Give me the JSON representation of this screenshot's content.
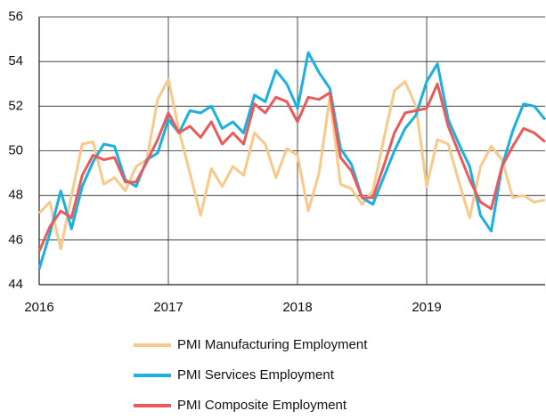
{
  "chart_data": {
    "type": "line",
    "x": [
      2016,
      2016.083,
      2016.167,
      2016.25,
      2016.333,
      2016.417,
      2016.5,
      2016.583,
      2016.667,
      2016.75,
      2016.833,
      2016.917,
      2017,
      2017.083,
      2017.167,
      2017.25,
      2017.333,
      2017.417,
      2017.5,
      2017.583,
      2017.667,
      2017.75,
      2017.833,
      2017.917,
      2018,
      2018.083,
      2018.167,
      2018.25,
      2018.333,
      2018.417,
      2018.5,
      2018.583,
      2018.667,
      2018.75,
      2018.833,
      2018.917,
      2019,
      2019.083,
      2019.167,
      2019.25,
      2019.333,
      2019.417,
      2019.5,
      2019.583,
      2019.667,
      2019.75,
      2019.833,
      2019.917
    ],
    "series": [
      {
        "name": "PMI Manufacturing Employment",
        "color": "#f9c98a",
        "values": [
          47.2,
          47.7,
          45.6,
          48.0,
          50.3,
          50.4,
          48.5,
          48.8,
          48.2,
          49.3,
          49.6,
          52.3,
          53.2,
          50.9,
          49.0,
          47.1,
          49.2,
          48.4,
          49.3,
          48.9,
          50.8,
          50.3,
          48.8,
          50.1,
          49.8,
          47.3,
          49.0,
          52.4,
          48.5,
          48.3,
          47.6,
          48.2,
          50.5,
          52.7,
          53.1,
          52.0,
          48.4,
          50.5,
          50.3,
          48.6,
          47.0,
          49.3,
          50.2,
          49.6,
          47.9,
          48.0,
          47.7,
          47.8
        ]
      },
      {
        "name": "PMI Services Employment",
        "color": "#1ab1e0",
        "values": [
          44.7,
          46.3,
          48.2,
          46.5,
          48.4,
          49.5,
          50.3,
          50.2,
          48.7,
          48.4,
          49.6,
          49.9,
          51.4,
          50.8,
          51.8,
          51.7,
          52.0,
          51.0,
          51.3,
          50.8,
          52.5,
          52.2,
          53.6,
          53.0,
          51.9,
          54.4,
          53.5,
          52.8,
          50.1,
          49.4,
          47.9,
          47.6,
          48.8,
          50.0,
          51.0,
          51.6,
          53.1,
          53.9,
          51.4,
          50.3,
          49.3,
          47.1,
          46.4,
          49.3,
          50.9,
          52.1,
          52.0,
          51.4
        ]
      },
      {
        "name": "PMI Composite Employment",
        "color": "#eb5a5a",
        "values": [
          45.5,
          46.6,
          47.3,
          47.0,
          48.9,
          49.8,
          49.6,
          49.7,
          48.6,
          48.6,
          49.5,
          50.5,
          51.7,
          50.8,
          51.1,
          50.6,
          51.3,
          50.3,
          50.8,
          50.3,
          52.1,
          51.7,
          52.4,
          52.2,
          51.3,
          52.4,
          52.3,
          52.6,
          49.7,
          49.1,
          47.9,
          47.9,
          49.3,
          50.8,
          51.7,
          51.8,
          51.9,
          53.0,
          51.1,
          49.9,
          48.7,
          47.7,
          47.4,
          49.3,
          50.2,
          51.0,
          50.8,
          50.4
        ]
      }
    ],
    "xlim": [
      2016,
      2019.917
    ],
    "xticks": [
      2016,
      2017,
      2018,
      2019
    ],
    "ylim": [
      44,
      56
    ],
    "yticks": [
      44,
      46,
      48,
      50,
      52,
      54,
      56
    ],
    "grid": true
  }
}
